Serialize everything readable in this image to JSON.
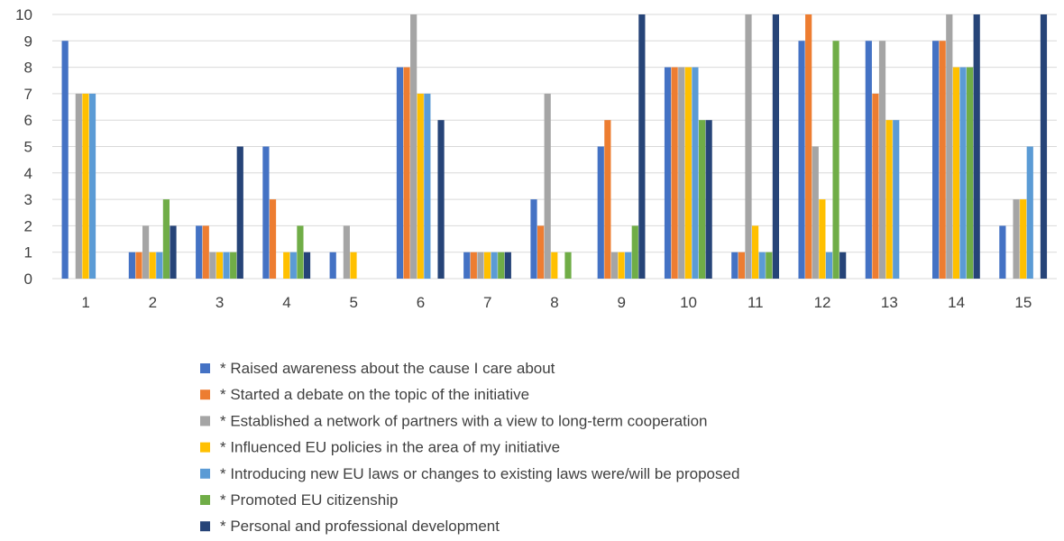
{
  "chart_data": {
    "type": "bar",
    "title": "",
    "xlabel": "",
    "ylabel": "",
    "ylim": [
      0,
      10
    ],
    "yticks": [
      0,
      1,
      2,
      3,
      4,
      5,
      6,
      7,
      8,
      9,
      10
    ],
    "grid": true,
    "legend_position": "bottom",
    "categories": [
      "1",
      "2",
      "3",
      "4",
      "5",
      "6",
      "7",
      "8",
      "9",
      "10",
      "11",
      "12",
      "13",
      "14",
      "15"
    ],
    "series": [
      {
        "name": "* Raised awareness about the cause I care about",
        "color": "#4472c4",
        "values": [
          9,
          1,
          2,
          5,
          1,
          8,
          1,
          3,
          5,
          8,
          1,
          9,
          9,
          9,
          2
        ]
      },
      {
        "name": "* Started a debate on the topic of the initiative",
        "color": "#ed7d31",
        "values": [
          0,
          1,
          2,
          3,
          0,
          8,
          1,
          2,
          6,
          8,
          1,
          10,
          7,
          9,
          0
        ]
      },
      {
        "name": "* Established a network of partners with a view to long-term cooperation",
        "color": "#a5a5a5",
        "values": [
          7,
          2,
          1,
          0,
          2,
          10,
          1,
          7,
          1,
          8,
          10,
          5,
          9,
          10,
          3
        ]
      },
      {
        "name": "* Influenced EU policies in the area of my initiative",
        "color": "#ffc000",
        "values": [
          7,
          1,
          1,
          1,
          1,
          7,
          1,
          1,
          1,
          8,
          2,
          3,
          6,
          8,
          3
        ]
      },
      {
        "name": "* Introducing new EU laws or changes to existing laws were/will be proposed",
        "color": "#5b9bd5",
        "values": [
          7,
          1,
          1,
          1,
          0,
          7,
          1,
          0,
          1,
          8,
          1,
          1,
          6,
          8,
          5
        ]
      },
      {
        "name": "* Promoted EU citizenship",
        "color": "#70ad47",
        "values": [
          0,
          3,
          1,
          2,
          0,
          0,
          1,
          1,
          2,
          6,
          1,
          9,
          0,
          8,
          0
        ]
      },
      {
        "name": "* Personal and professional development",
        "color": "#264478",
        "values": [
          0,
          2,
          5,
          1,
          0,
          6,
          1,
          0,
          10,
          6,
          10,
          1,
          0,
          10,
          10
        ]
      }
    ]
  }
}
